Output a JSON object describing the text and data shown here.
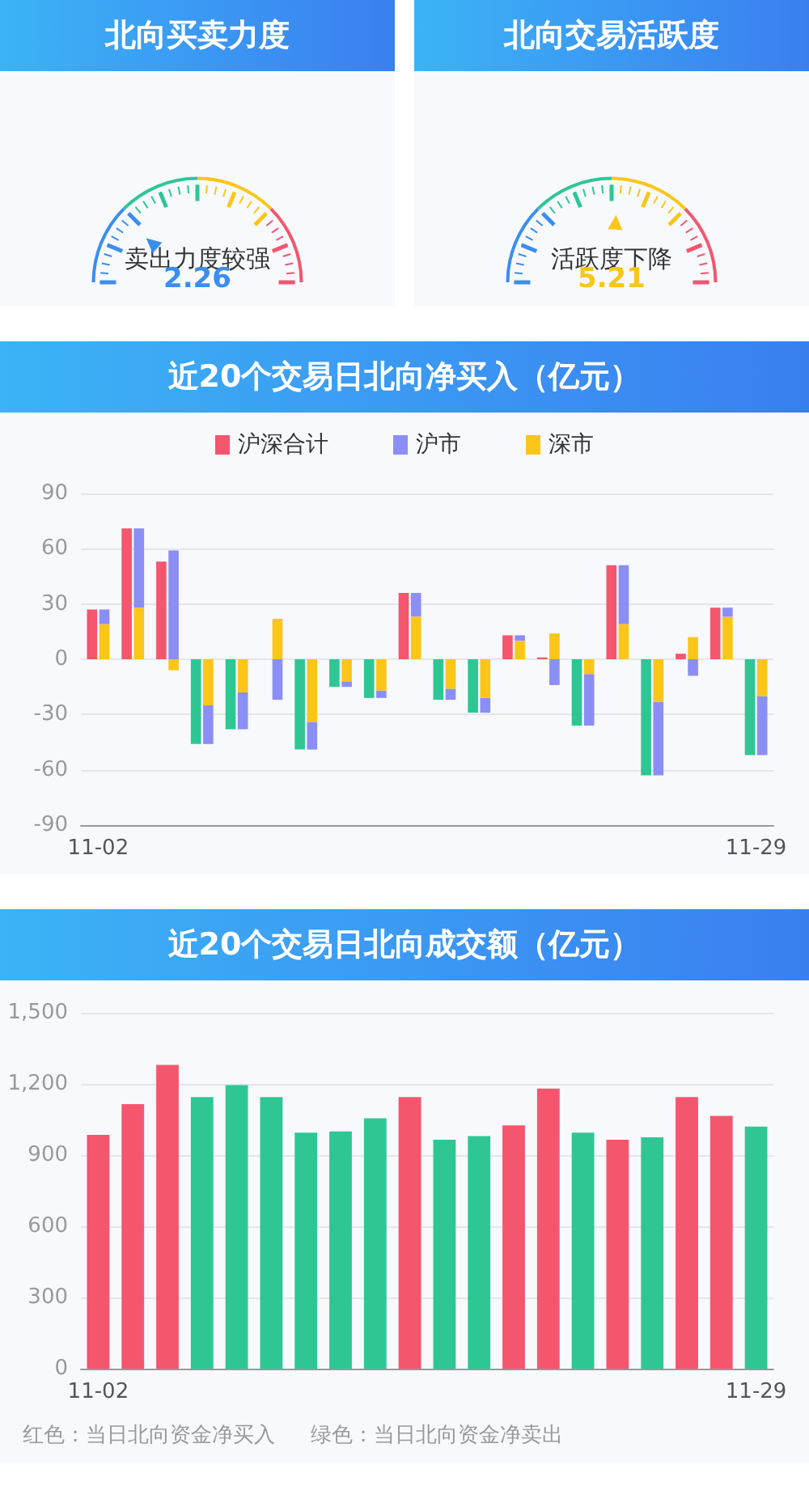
{
  "chart_data": [
    {
      "type": "other",
      "title": "北向买卖力度",
      "subtitle": "卖出力度较强",
      "values": [
        2.26
      ],
      "data_labels": true
    },
    {
      "type": "other",
      "title": "北向交易活跃度",
      "subtitle": "活跃度下降",
      "values": [
        5.21
      ],
      "data_labels": true
    },
    {
      "type": "bar",
      "title": "近20个交易日北向净买入（亿元）",
      "categories": [
        "11-02",
        null,
        null,
        null,
        null,
        null,
        null,
        null,
        null,
        null,
        null,
        null,
        null,
        null,
        null,
        null,
        null,
        null,
        null,
        "11-29"
      ],
      "series": [
        {
          "name": "沪深合计",
          "color": "#f4566e",
          "values": [
            27,
            71,
            53,
            -46,
            -38,
            0,
            -49,
            -15,
            -21,
            36,
            -22,
            -29,
            13,
            1,
            -36,
            51,
            -63,
            3,
            28,
            -52
          ],
          "colors": [
            "#f4566e",
            "#f4566e",
            "#f4566e",
            "#2ec794",
            "#2ec794",
            "#2ec794",
            "#2ec794",
            "#2ec794",
            "#2ec794",
            "#f4566e",
            "#2ec794",
            "#2ec794",
            "#f4566e",
            "#f4566e",
            "#2ec794",
            "#f4566e",
            "#2ec794",
            "#f4566e",
            "#f4566e",
            "#2ec794"
          ]
        },
        {
          "name": "沪市",
          "color": "#8b8ef5",
          "values": [
            8,
            43,
            59,
            -21,
            -20,
            -22,
            -15,
            -3,
            -4,
            13,
            -6,
            -8,
            3,
            -14,
            -28,
            32,
            -40,
            -9,
            5,
            -32
          ],
          "base": [
            19,
            28,
            0,
            -25,
            -18,
            0,
            -34,
            -12,
            -17,
            23,
            -16,
            -21,
            10,
            0,
            -8,
            19,
            -23,
            0,
            23,
            -20
          ]
        },
        {
          "name": "深市",
          "color": "#fbc618",
          "values": [
            19,
            28,
            -6,
            -25,
            -18,
            22,
            -34,
            -12,
            -17,
            23,
            -16,
            -21,
            10,
            14,
            -8,
            19,
            -23,
            12,
            23,
            -20
          ]
        }
      ],
      "ylim": [
        -90,
        90
      ],
      "yticks": [
        -90,
        -60,
        -30,
        0,
        30,
        60,
        90
      ],
      "grid": "y",
      "legend": "top"
    },
    {
      "type": "bar",
      "title": "近20个交易日北向成交额（亿元）",
      "categories": [
        "11-02",
        null,
        null,
        null,
        null,
        null,
        null,
        null,
        null,
        null,
        null,
        null,
        null,
        null,
        null,
        null,
        null,
        null,
        null,
        "11-29"
      ],
      "values": [
        985,
        1115,
        1280,
        1145,
        1195,
        1145,
        995,
        1000,
        1055,
        1145,
        965,
        980,
        1025,
        1180,
        995,
        965,
        975,
        1145,
        1065,
        1020
      ],
      "colors": [
        "#f4566e",
        "#f4566e",
        "#f4566e",
        "#2ec794",
        "#2ec794",
        "#2ec794",
        "#2ec794",
        "#2ec794",
        "#2ec794",
        "#f4566e",
        "#2ec794",
        "#2ec794",
        "#f4566e",
        "#f4566e",
        "#2ec794",
        "#f4566e",
        "#2ec794",
        "#f4566e",
        "#f4566e",
        "#2ec794"
      ],
      "ylim": [
        0,
        1500
      ],
      "yticks": [
        0,
        300,
        600,
        900,
        {
          "value": 1200,
          "label": "1,200"
        },
        {
          "value": 1500,
          "label": "1,500"
        }
      ],
      "grid": "y",
      "annotations": [
        "红色：当日北向资金净买入",
        "绿色：当日北向资金净卖出"
      ]
    }
  ]
}
